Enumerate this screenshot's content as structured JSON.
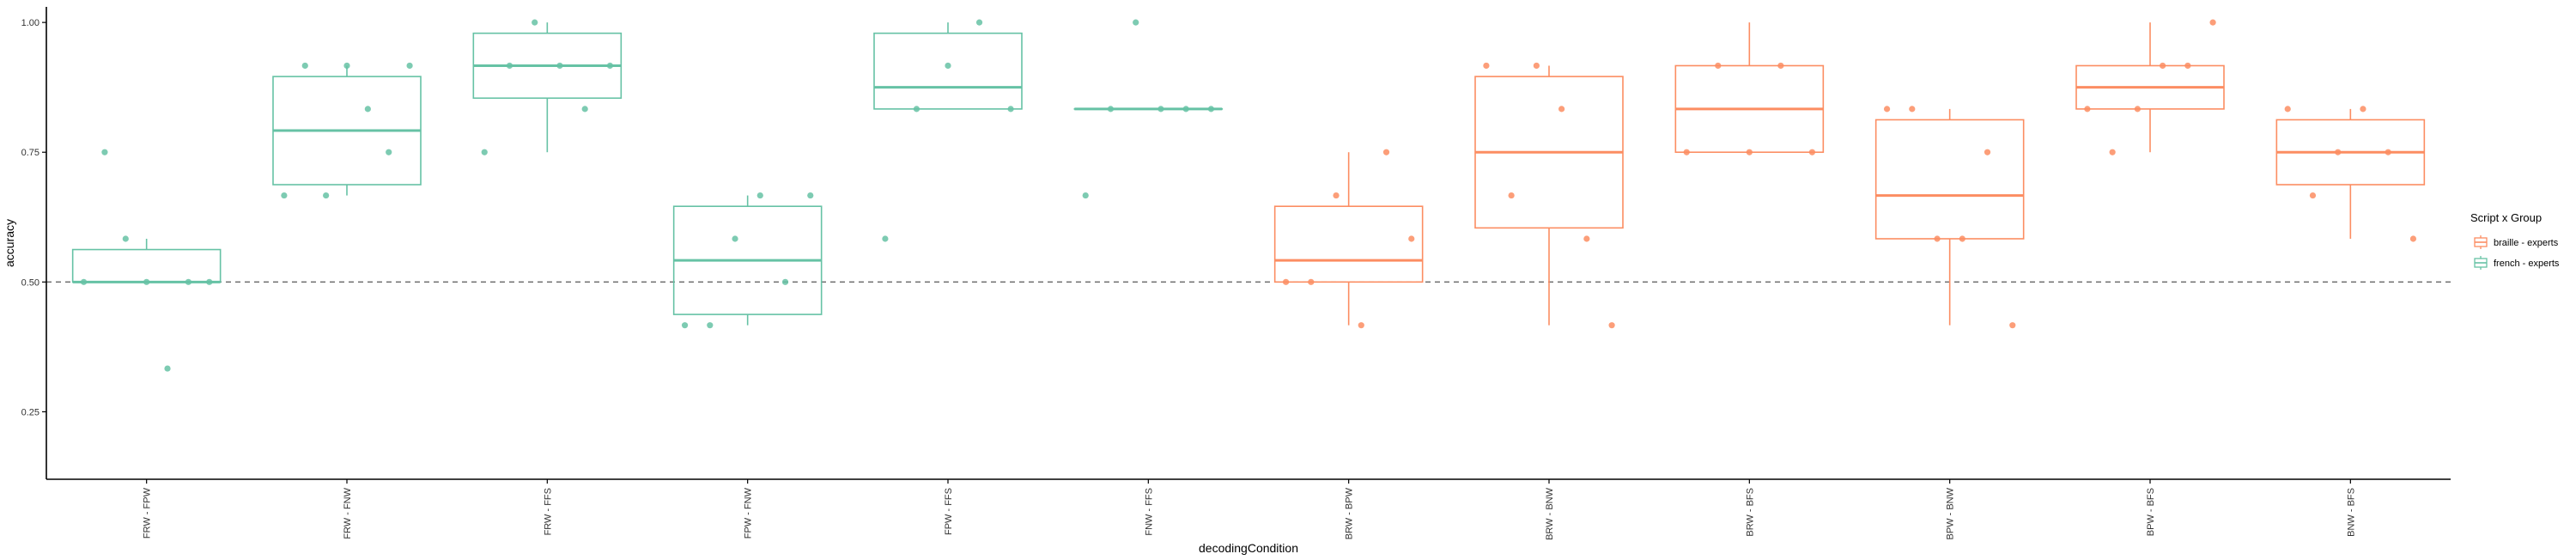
{
  "chart_data": {
    "type": "boxplot",
    "title": "",
    "xlabel": "decodingCondition",
    "ylabel": "accuracy",
    "ylim": [
      0.12,
      1.03
    ],
    "yticks": [
      0.25,
      0.5,
      0.75,
      1.0
    ],
    "ytick_labels": [
      "0.25",
      "0.50",
      "0.75",
      "1.00"
    ],
    "reference_line": 0.5,
    "grid": false,
    "legend": {
      "title": "Script x Group",
      "placement": "right",
      "entries": [
        {
          "label": "braille - experts",
          "color": "#fc8d62"
        },
        {
          "label": "french - experts",
          "color": "#66c2a5"
        }
      ]
    },
    "groups": [
      {
        "name": "FRW - FPW",
        "series": "french - experts",
        "whisker_low": 0.5,
        "q1": 0.5,
        "median": 0.5,
        "q3": 0.5625,
        "whisker_high": 0.5833,
        "points": [
          0.5,
          0.75,
          0.5833,
          0.5,
          0.3333,
          0.5,
          0.5
        ]
      },
      {
        "name": "FRW - FNW",
        "series": "french - experts",
        "whisker_low": 0.6667,
        "q1": 0.6875,
        "median": 0.7917,
        "q3": 0.8958,
        "whisker_high": 0.9167,
        "points": [
          0.6667,
          0.9167,
          0.6667,
          0.9167,
          0.8333,
          0.75,
          0.9167
        ]
      },
      {
        "name": "FRW - FFS",
        "series": "french - experts",
        "whisker_low": 0.75,
        "q1": 0.8542,
        "median": 0.9167,
        "q3": 0.9792,
        "whisker_high": 1.0,
        "points": [
          0.75,
          0.9167,
          1.0,
          0.9167,
          0.8333,
          0.9167
        ]
      },
      {
        "name": "FPW - FNW",
        "series": "french - experts",
        "whisker_low": 0.4167,
        "q1": 0.4375,
        "median": 0.5417,
        "q3": 0.6458,
        "whisker_high": 0.6667,
        "points": [
          0.4167,
          0.4167,
          0.5833,
          0.6667,
          0.5,
          0.6667
        ]
      },
      {
        "name": "FPW - FFS",
        "series": "french - experts",
        "whisker_low": 0.8333,
        "q1": 0.8333,
        "median": 0.875,
        "q3": 0.9792,
        "whisker_high": 1.0,
        "points": [
          0.5833,
          0.8333,
          0.9167,
          1.0,
          0.8333
        ]
      },
      {
        "name": "FNW - FFS",
        "series": "french - experts",
        "whisker_low": 0.8333,
        "q1": 0.8333,
        "median": 0.8333,
        "q3": 0.8333,
        "whisker_high": 0.8333,
        "points": [
          0.6667,
          0.8333,
          1.0,
          0.8333,
          0.8333,
          0.8333
        ]
      },
      {
        "name": "BRW - BPW",
        "series": "braille - experts",
        "whisker_low": 0.4167,
        "q1": 0.5,
        "median": 0.5417,
        "q3": 0.6458,
        "whisker_high": 0.75,
        "points": [
          0.5,
          0.5,
          0.6667,
          0.4167,
          0.75,
          0.5833
        ]
      },
      {
        "name": "BRW - BNW",
        "series": "braille - experts",
        "whisker_low": 0.4167,
        "q1": 0.6042,
        "median": 0.75,
        "q3": 0.8958,
        "whisker_high": 0.9167,
        "points": [
          0.9167,
          0.6667,
          0.9167,
          0.8333,
          0.5833,
          0.4167
        ]
      },
      {
        "name": "BRW - BFS",
        "series": "braille - experts",
        "whisker_low": 0.75,
        "q1": 0.75,
        "median": 0.8333,
        "q3": 0.9167,
        "whisker_high": 1.0,
        "points": [
          0.75,
          0.9167,
          0.75,
          0.9167,
          0.75
        ]
      },
      {
        "name": "BPW - BNW",
        "series": "braille - experts",
        "whisker_low": 0.4167,
        "q1": 0.5833,
        "median": 0.6667,
        "q3": 0.8125,
        "whisker_high": 0.8333,
        "points": [
          0.8333,
          0.8333,
          0.5833,
          0.5833,
          0.75,
          0.4167
        ]
      },
      {
        "name": "BPW - BFS",
        "series": "braille - experts",
        "whisker_low": 0.75,
        "q1": 0.8333,
        "median": 0.875,
        "q3": 0.9167,
        "whisker_high": 1.0,
        "points": [
          0.8333,
          0.75,
          0.8333,
          0.9167,
          0.9167,
          1.0
        ]
      },
      {
        "name": "BNW - BFS",
        "series": "braille - experts",
        "whisker_low": 0.5833,
        "q1": 0.6875,
        "median": 0.75,
        "q3": 0.8125,
        "whisker_high": 0.8333,
        "points": [
          0.8333,
          0.6667,
          0.75,
          0.8333,
          0.75,
          0.5833
        ]
      }
    ]
  }
}
